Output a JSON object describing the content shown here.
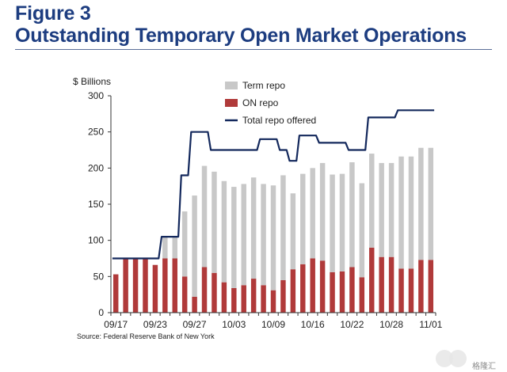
{
  "figure": {
    "label": "Figure 3",
    "title": "Outstanding Temporary Open Market Operations"
  },
  "source": "Source: Federal Reserve Bank of New York",
  "watermark": {
    "text": "格隆汇"
  },
  "colors": {
    "title": "#1d3d80",
    "term_repo": "#c8c8c8",
    "on_repo": "#b03a3a",
    "total_line": "#13285c",
    "axis": "#333333"
  },
  "chart_data": {
    "type": "bar",
    "unit_label": "$ Billions",
    "ylim": [
      0,
      300
    ],
    "yticks": [
      0,
      50,
      100,
      150,
      200,
      250,
      300
    ],
    "grid": false,
    "legend_position": "top-center",
    "categories": [
      "09/17",
      "09/18",
      "09/19",
      "09/20",
      "09/23",
      "09/24",
      "09/25",
      "09/26",
      "09/27",
      "09/30",
      "10/01",
      "10/02",
      "10/03",
      "10/04",
      "10/07",
      "10/08",
      "10/09",
      "10/10",
      "10/11",
      "10/15",
      "10/16",
      "10/17",
      "10/18",
      "10/21",
      "10/22",
      "10/23",
      "10/24",
      "10/25",
      "10/28",
      "10/29",
      "10/30",
      "10/31",
      "11/01"
    ],
    "xtick_labels": [
      {
        "index": 0,
        "label": "09/17"
      },
      {
        "index": 4,
        "label": "09/23"
      },
      {
        "index": 8,
        "label": "09/27"
      },
      {
        "index": 12,
        "label": "10/03"
      },
      {
        "index": 16,
        "label": "10/09"
      },
      {
        "index": 20,
        "label": "10/16"
      },
      {
        "index": 24,
        "label": "10/22"
      },
      {
        "index": 28,
        "label": "10/28"
      },
      {
        "index": 32,
        "label": "11/01"
      }
    ],
    "series": [
      {
        "name": "Term repo",
        "kind": "stacked-bar",
        "color": "#c8c8c8",
        "values": [
          0,
          0,
          0,
          0,
          0,
          30,
          30,
          90,
          140,
          140,
          140,
          140,
          140,
          140,
          140,
          140,
          145,
          145,
          105,
          125,
          125,
          135,
          135,
          135,
          145,
          130,
          130,
          130,
          130,
          155,
          155,
          155,
          155
        ]
      },
      {
        "name": "ON repo",
        "kind": "stacked-bar",
        "color": "#b03a3a",
        "values": [
          53,
          75,
          75,
          75,
          66,
          75,
          75,
          50,
          22,
          63,
          55,
          42,
          34,
          38,
          47,
          38,
          31,
          45,
          60,
          67,
          75,
          72,
          56,
          57,
          63,
          49,
          90,
          77,
          77,
          61,
          61,
          73,
          73
        ]
      },
      {
        "name": "Total repo offered",
        "kind": "line",
        "color": "#13285c",
        "values": [
          75,
          75,
          75,
          75,
          75,
          105,
          105,
          190,
          250,
          250,
          225,
          225,
          225,
          225,
          225,
          240,
          240,
          225,
          210,
          245,
          245,
          235,
          235,
          235,
          225,
          225,
          270,
          270,
          270,
          280,
          280,
          280,
          280
        ]
      }
    ]
  }
}
